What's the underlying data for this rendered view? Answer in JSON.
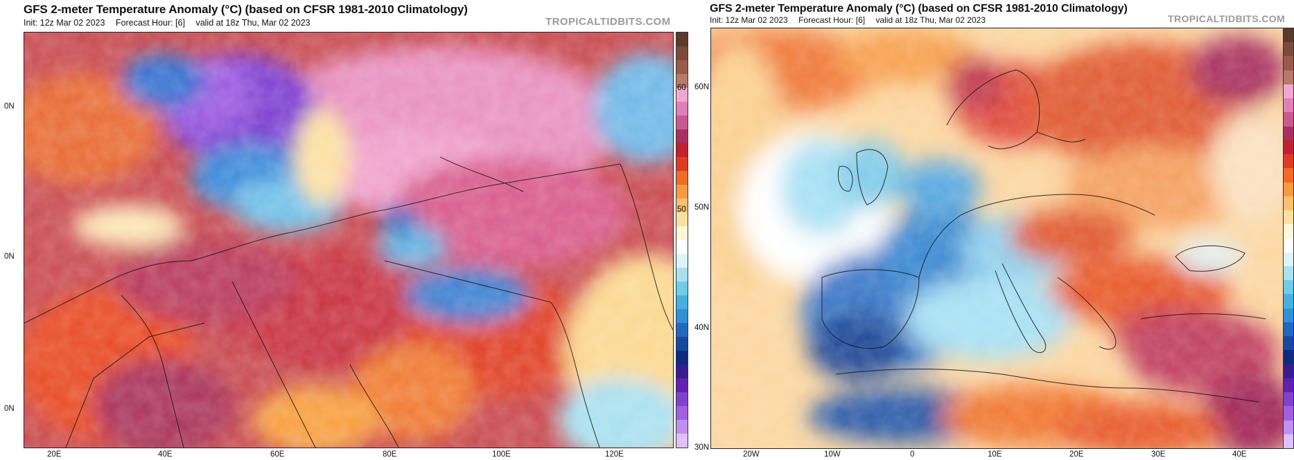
{
  "left_panel": {
    "title": "GFS 2-meter Temperature Anomaly (°C) (based on CFSR 1981-2010 Climatology)",
    "init": "Init: 12z Mar 02 2023",
    "forecast_hour": "Forecast Hour: [6]",
    "valid": "valid at 18z Thu, Mar 02 2023",
    "watermark": "TROPICALTIDBITS.COM",
    "lon_labels": [
      "20E",
      "40E",
      "60E",
      "80E",
      "100E",
      "120E"
    ],
    "lat_labels": [
      "0N",
      "0N",
      "0N"
    ],
    "colorbar_labels": [
      "60",
      "50"
    ]
  },
  "right_panel": {
    "title": "GFS 2-meter Temperature Anomaly (°C) (based on CFSR 1981-2010 Climatology)",
    "init": "Init: 12z Mar 02 2023",
    "forecast_hour": "Forecast Hour: [6]",
    "valid": "valid at 18z Thu, Mar 02 2023",
    "watermark": "TROPICALTIDBITS.COM",
    "lon_labels": [
      "20W",
      "10W",
      "0",
      "10E",
      "20E",
      "30E",
      "40E"
    ],
    "lat_labels": [
      "60N",
      "50N",
      "40N",
      "30N"
    ]
  },
  "colorbar_colors": [
    "#5a3a2a",
    "#7a4a3a",
    "#9a5a4a",
    "#b87a6a",
    "#f0a8d0",
    "#e080b8",
    "#c85a90",
    "#a83060",
    "#c02030",
    "#e03a20",
    "#f06a28",
    "#f89a40",
    "#fcc070",
    "#fde0a0",
    "#fff6d8",
    "#ffffff",
    "#e0f4f8",
    "#a8e2f0",
    "#70cce8",
    "#48b0e0",
    "#3090d8",
    "#2068c0",
    "#1848a0",
    "#102a80",
    "#3a1a90",
    "#6020b0",
    "#8040d0",
    "#a060e0",
    "#c090f0",
    "#e0c0f8"
  ]
}
